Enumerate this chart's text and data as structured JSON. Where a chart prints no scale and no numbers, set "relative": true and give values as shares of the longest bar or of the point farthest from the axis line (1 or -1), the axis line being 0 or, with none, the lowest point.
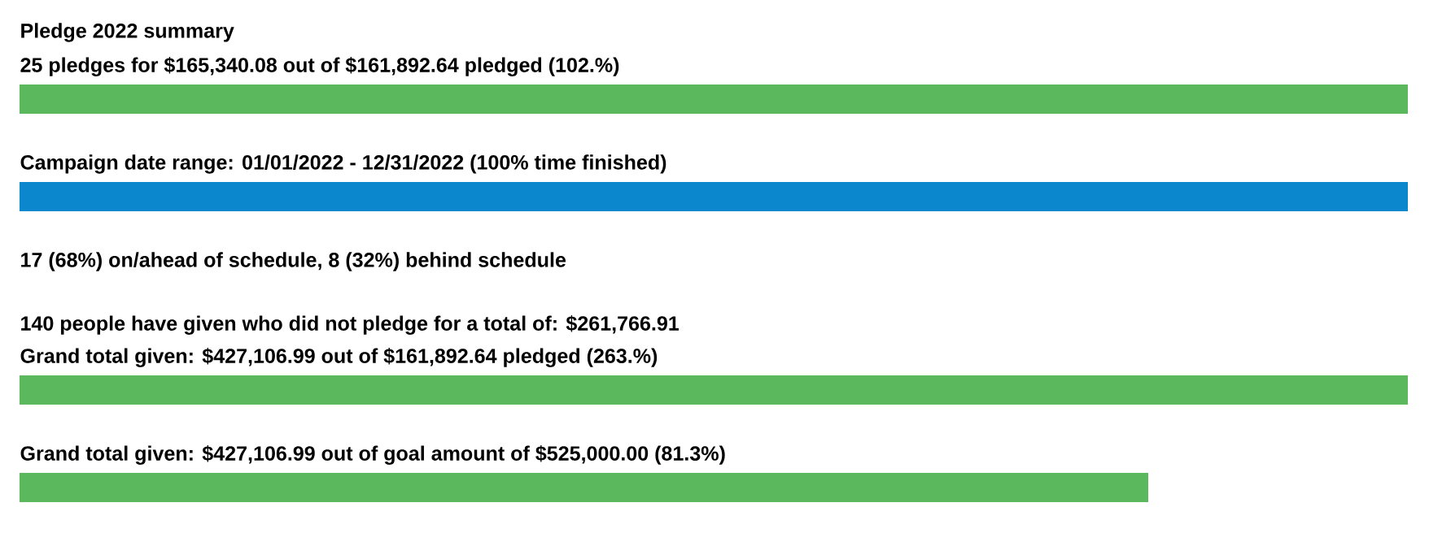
{
  "chart_data": {
    "type": "bar",
    "orientation": "horizontal",
    "relative": true,
    "title": "Pledge 2022 summary",
    "categories": [
      "25 pledges for $165,340.08 out of $161,892.64 pledged (102.%)",
      "Campaign date range: 01/01/2022 - 12/31/2022 (100% time finished)",
      "Grand total given: $427,106.99 out of $161,892.64 pledged (263.%)",
      "Grand total given: $427,106.99 out of goal amount of $525,000.00 (81.3%)"
    ],
    "values": [
      1,
      1,
      1,
      0.813
    ],
    "colors": [
      "#5cb85c",
      "#0b87cd",
      "#5cb85c",
      "#5cb85c"
    ],
    "annotations": [
      "17 (68%) on/ahead of schedule, 8 (32%) behind schedule",
      "140 people have given who did not pledge for a total of: $261,766.91"
    ]
  }
}
